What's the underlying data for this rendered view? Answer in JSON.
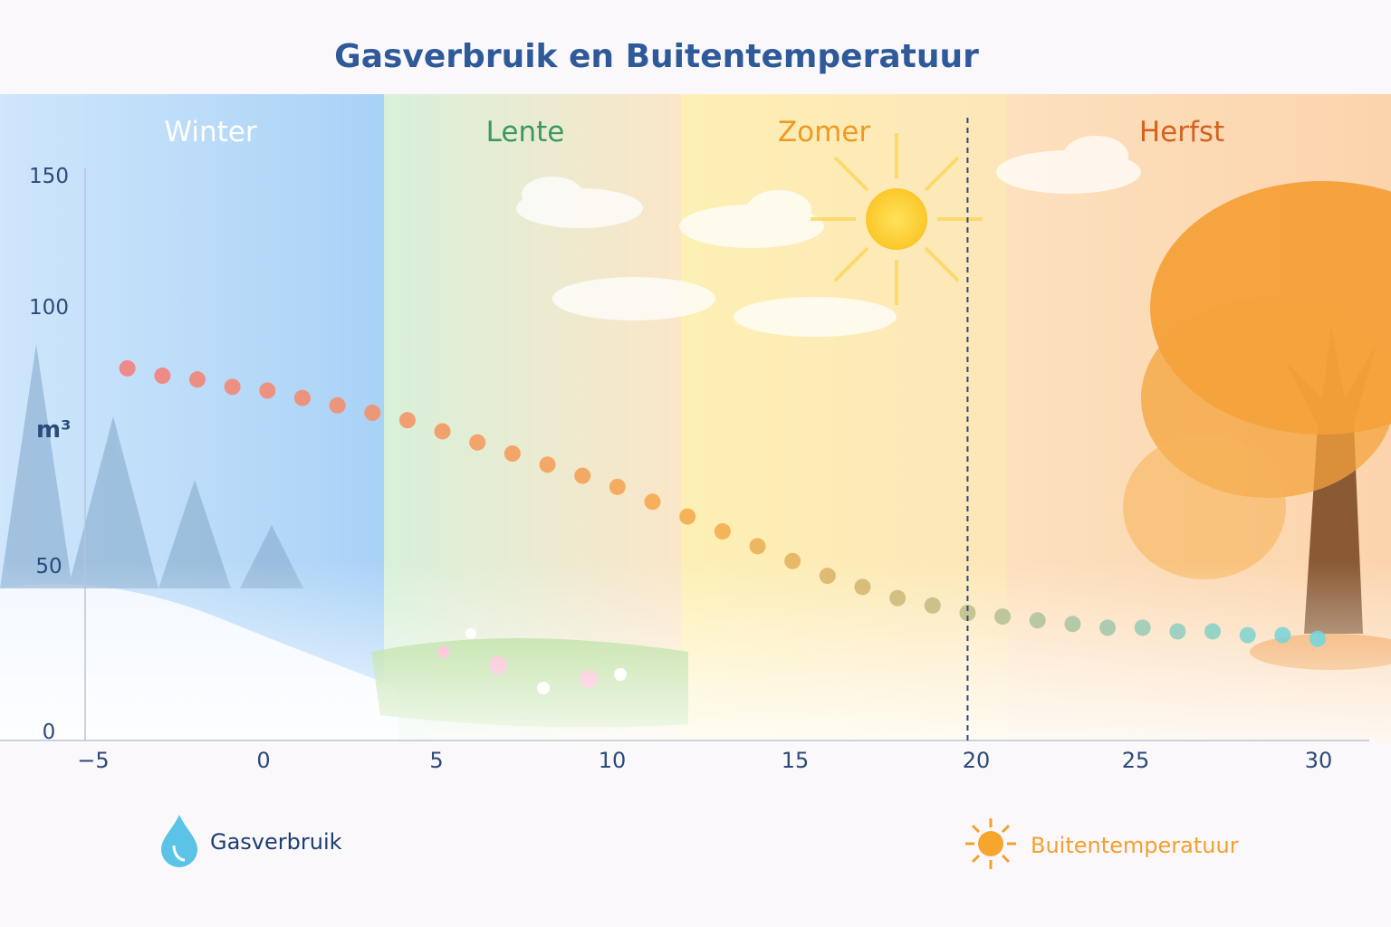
{
  "title": "Gasverbruik en Buitentemperatuur",
  "seasons": [
    {
      "label": "Winter",
      "color": "#ffffff"
    },
    {
      "label": "Lente",
      "color": "#3a9a5c"
    },
    {
      "label": "Zomer",
      "color": "#ef9a22"
    },
    {
      "label": "Herfst",
      "color": "#d5621e"
    }
  ],
  "y_unit": "m³",
  "legend": [
    {
      "label": "Gasverbruik",
      "color": "#1d3f70",
      "icon": "water-drop-icon"
    },
    {
      "label": "Buitentemperatuur",
      "color": "#f2a02e",
      "icon": "sun-icon"
    }
  ],
  "chart_data": {
    "type": "scatter",
    "title": "Gasverbruik en Buitentemperatuur",
    "xlabel": "",
    "ylabel": "m³",
    "x_ticks": [
      "−5",
      "0",
      "5",
      "10",
      "15",
      "20",
      "25",
      "30"
    ],
    "y_ticks": [
      "0",
      "50",
      "100",
      "150"
    ],
    "xlim": [
      -5,
      30
    ],
    "ylim": [
      0,
      150
    ],
    "reference_line_x": 20,
    "grid": false,
    "legend_position": "bottom",
    "series": [
      {
        "name": "Gasverbruik",
        "x": [
          -4,
          -3,
          -2,
          -1,
          0,
          1,
          2,
          3,
          4,
          5,
          6,
          7,
          8,
          9,
          10,
          11,
          12,
          13,
          14,
          15,
          16,
          17,
          18,
          19,
          20,
          21,
          22,
          23,
          24,
          25,
          26,
          27,
          28,
          29,
          30
        ],
        "y": [
          98,
          96,
          95,
          93,
          92,
          90,
          88,
          86,
          84,
          81,
          78,
          75,
          72,
          69,
          66,
          62,
          58,
          54,
          50,
          46,
          42,
          39,
          36,
          34,
          32,
          31,
          30,
          29,
          28,
          28,
          27,
          27,
          26,
          26,
          25
        ]
      }
    ]
  }
}
